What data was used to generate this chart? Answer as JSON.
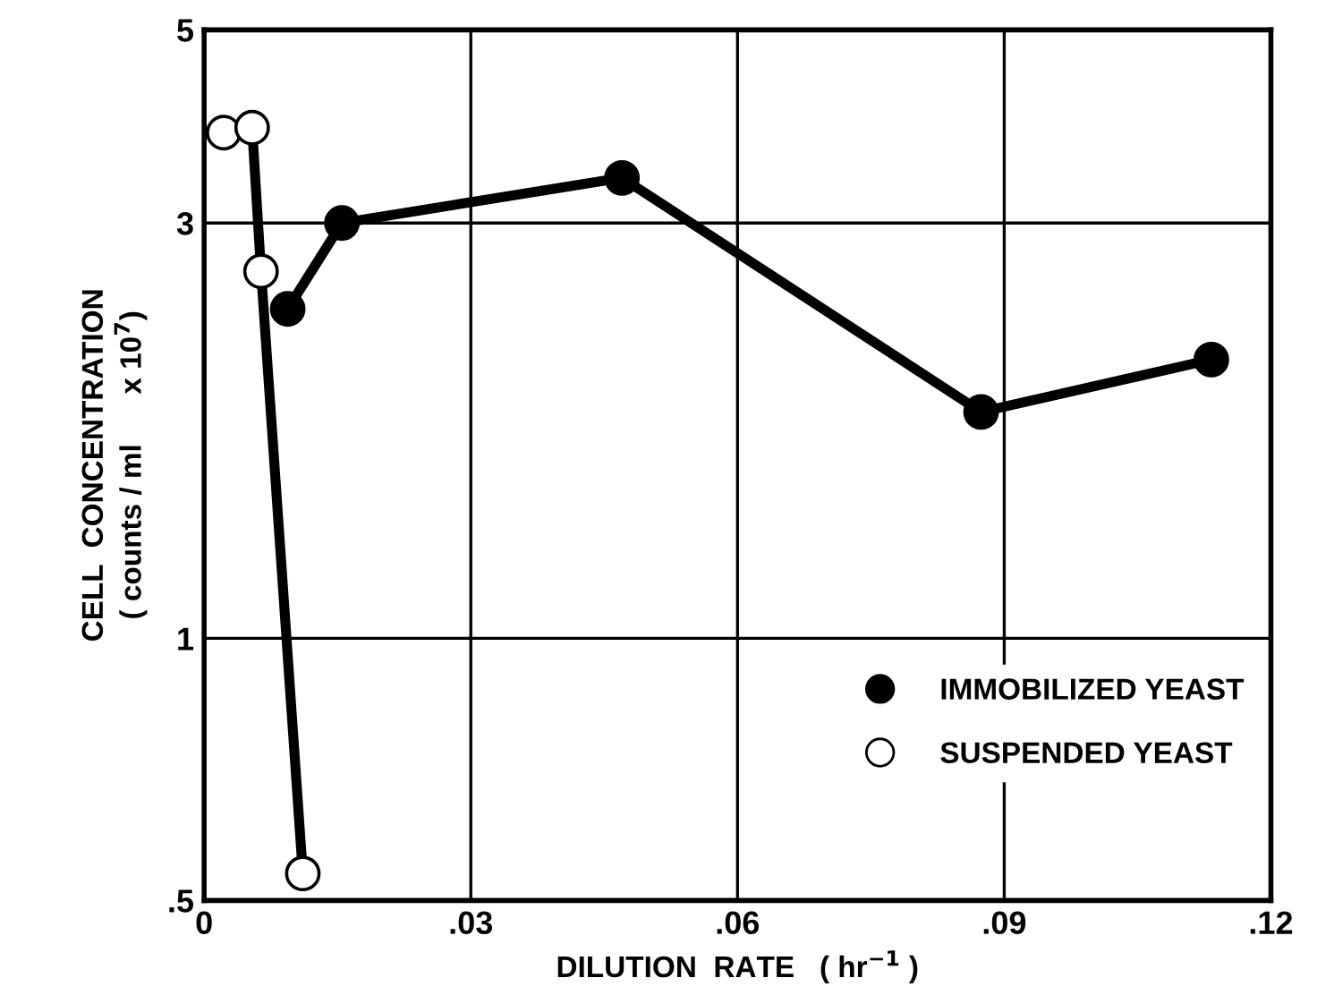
{
  "chart_data": {
    "type": "line",
    "xlabel": "DILUTION  RATE   ( hr$^{−1}$ )",
    "ylabel": "CELL  CONCENTRATION\n( counts / ml      x 10$^{7}$)",
    "series": [
      {
        "name": "IMMOBILIZED YEAST",
        "color": "#000000",
        "x": [
          0.0094,
          0.0155,
          0.047,
          0.0874,
          0.1133
        ],
        "values": [
          2.39,
          3.0,
          3.38,
          1.82,
          2.09
        ]
      },
      {
        "name": "SUSPENDED YEAST",
        "color": "#000000",
        "x": [
          0.0022,
          0.0054,
          0.0064,
          0.0111
        ],
        "values": [
          3.81,
          3.86,
          2.64,
          0.537
        ]
      }
    ],
    "xlim": [
      0,
      0.12
    ],
    "ylim": [
      0.5,
      5
    ],
    "xticks": [
      0,
      {
        "value": 0.03,
        "label": ".03"
      },
      {
        "value": 0.06,
        "label": ".06"
      },
      {
        "value": 0.09,
        "label": ".09"
      },
      {
        "value": 0.12,
        "label": ".12"
      }
    ],
    "yticks": [
      {
        "value": 0.5,
        "label": ".5"
      },
      1,
      3,
      5
    ],
    "log": "y",
    "grid": true,
    "legend": "lower right",
    "marker": "circle",
    "line_style": "solid"
  }
}
